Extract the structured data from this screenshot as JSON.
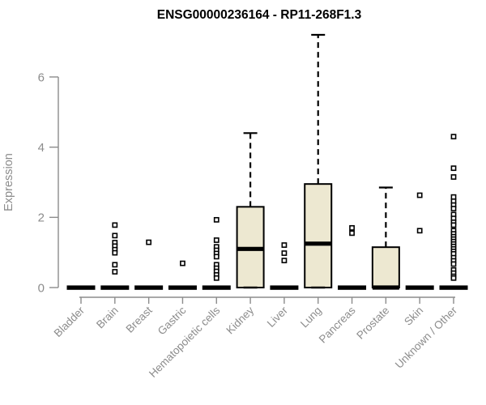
{
  "chart_data": {
    "type": "boxplot",
    "title": "ENSG00000236164 - RP11-268F1.3",
    "xlabel": "",
    "ylabel": "Expression",
    "ylim": [
      0,
      7.3
    ],
    "yticks": [
      0,
      2,
      4,
      6
    ],
    "grid": false,
    "legend": false,
    "colors": {
      "box_fill": "#EDE8D1",
      "box_stroke": "#000000",
      "median": "#000000",
      "axis": "#8c8c8c",
      "tick_label": "#8c8c8c",
      "title": "#000000",
      "outlier_fill": "#ffffff",
      "outlier_stroke": "#000000",
      "background": "#ffffff"
    },
    "categories": [
      "Bladder",
      "Brain",
      "Breast",
      "Gastric",
      "Hematopoietic cells",
      "Kidney",
      "Liver",
      "Lung",
      "Pancreas",
      "Prostate",
      "Skin",
      "Unknown / Other"
    ],
    "boxes": [
      {
        "category": "Bladder",
        "q1": 0,
        "median": 0,
        "q3": 0,
        "whisker_low": 0,
        "whisker_high": 0,
        "outliers": []
      },
      {
        "category": "Brain",
        "q1": 0,
        "median": 0,
        "q3": 0,
        "whisker_low": 0,
        "whisker_high": 0,
        "outliers": [
          1.78,
          1.48,
          1.28,
          1.18,
          1.08,
          0.99,
          0.65,
          0.45
        ]
      },
      {
        "category": "Breast",
        "q1": 0,
        "median": 0,
        "q3": 0,
        "whisker_low": 0,
        "whisker_high": 0,
        "outliers": [
          1.29
        ]
      },
      {
        "category": "Gastric",
        "q1": 0,
        "median": 0,
        "q3": 0,
        "whisker_low": 0,
        "whisker_high": 0,
        "outliers": [
          0.69
        ]
      },
      {
        "category": "Hematopoietic cells",
        "q1": 0,
        "median": 0,
        "q3": 0,
        "whisker_low": 0,
        "whisker_high": 0,
        "outliers": [
          1.93,
          1.35,
          1.16,
          1.06,
          0.97,
          0.88,
          0.65,
          0.55,
          0.46,
          0.36,
          0.27
        ]
      },
      {
        "category": "Kidney",
        "q1": 0,
        "median": 1.1,
        "q3": 2.3,
        "whisker_low": 0,
        "whisker_high": 4.4,
        "outliers": []
      },
      {
        "category": "Liver",
        "q1": 0,
        "median": 0,
        "q3": 0,
        "whisker_low": 0,
        "whisker_high": 0,
        "outliers": [
          1.21,
          0.98,
          0.77
        ]
      },
      {
        "category": "Lung",
        "q1": 0,
        "median": 1.25,
        "q3": 2.95,
        "whisker_low": 0,
        "whisker_high": 7.2,
        "outliers": []
      },
      {
        "category": "Pancreas",
        "q1": 0,
        "median": 0,
        "q3": 0,
        "whisker_low": 0,
        "whisker_high": 0,
        "outliers": [
          1.7,
          1.55
        ]
      },
      {
        "category": "Prostate",
        "q1": 0,
        "median": 0,
        "q3": 1.15,
        "whisker_low": 0,
        "whisker_high": 2.85,
        "outliers": []
      },
      {
        "category": "Skin",
        "q1": 0,
        "median": 0,
        "q3": 0,
        "whisker_low": 0,
        "whisker_high": 0,
        "outliers": [
          2.63,
          1.62
        ]
      },
      {
        "category": "Unknown / Other",
        "q1": 0,
        "median": 0,
        "q3": 0,
        "whisker_low": 0,
        "whisker_high": 0,
        "outliers": [
          4.3,
          3.4,
          3.15,
          2.58,
          2.46,
          2.35,
          2.25,
          2.08,
          1.97,
          1.86,
          1.78,
          1.62,
          1.53,
          1.45,
          1.38,
          1.31,
          1.24,
          1.17,
          1.1,
          1.03,
          0.96,
          0.85,
          0.76,
          0.67,
          0.5,
          0.41,
          0.32,
          0.27
        ]
      }
    ]
  }
}
